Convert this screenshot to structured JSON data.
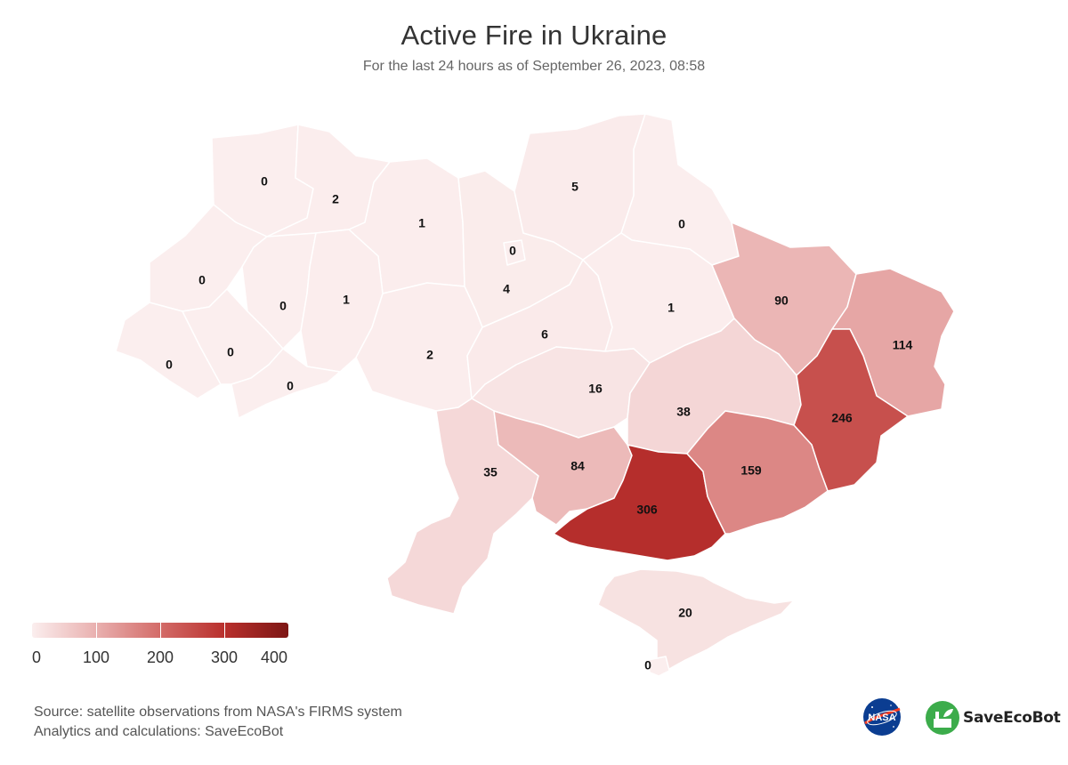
{
  "header": {
    "title": "Active Fire in Ukraine",
    "subtitle": "For the last 24 hours as of September 26, 2023, 08:58"
  },
  "map": {
    "color_scale": {
      "min": 0,
      "max": 400,
      "colors": [
        "#fbeeee",
        "#e9b0af",
        "#d36b68",
        "#b9302d",
        "#7d1614"
      ]
    },
    "regions": [
      {
        "id": "volyn",
        "value": 0
      },
      {
        "id": "rivne",
        "value": 2
      },
      {
        "id": "zhytomyr",
        "value": 1
      },
      {
        "id": "kyiv-city",
        "value": 0
      },
      {
        "id": "kyiv",
        "value": 4
      },
      {
        "id": "chernihiv",
        "value": 5
      },
      {
        "id": "sumy",
        "value": 0
      },
      {
        "id": "lviv",
        "value": 0
      },
      {
        "id": "ternopil",
        "value": 0
      },
      {
        "id": "khmelnytskyi",
        "value": 1
      },
      {
        "id": "zakarpattia",
        "value": 0
      },
      {
        "id": "ivano-frankivsk",
        "value": 0
      },
      {
        "id": "chernivtsi",
        "value": 0
      },
      {
        "id": "vinnytsia",
        "value": 2
      },
      {
        "id": "cherkasy",
        "value": 6
      },
      {
        "id": "poltava",
        "value": 1
      },
      {
        "id": "kharkiv",
        "value": 90
      },
      {
        "id": "luhansk",
        "value": 114
      },
      {
        "id": "kirovohrad",
        "value": 16
      },
      {
        "id": "dnipropetrovsk",
        "value": 38
      },
      {
        "id": "donetsk",
        "value": 246
      },
      {
        "id": "odesa",
        "value": 35
      },
      {
        "id": "mykolaiv",
        "value": 84
      },
      {
        "id": "kherson",
        "value": 306
      },
      {
        "id": "zaporizhzhia",
        "value": 159
      },
      {
        "id": "crimea",
        "value": 20
      },
      {
        "id": "sevastopol",
        "value": 0
      }
    ]
  },
  "legend": {
    "labels": [
      "0",
      "100",
      "200",
      "300",
      "400"
    ]
  },
  "footer": {
    "source_line": "Source: satellite observations from NASA's FIRMS system",
    "analytics_line": "Analytics and calculations: SaveEcoBot",
    "brand_name": "SaveEcoBot",
    "nasa_logo_text": "NASA"
  }
}
